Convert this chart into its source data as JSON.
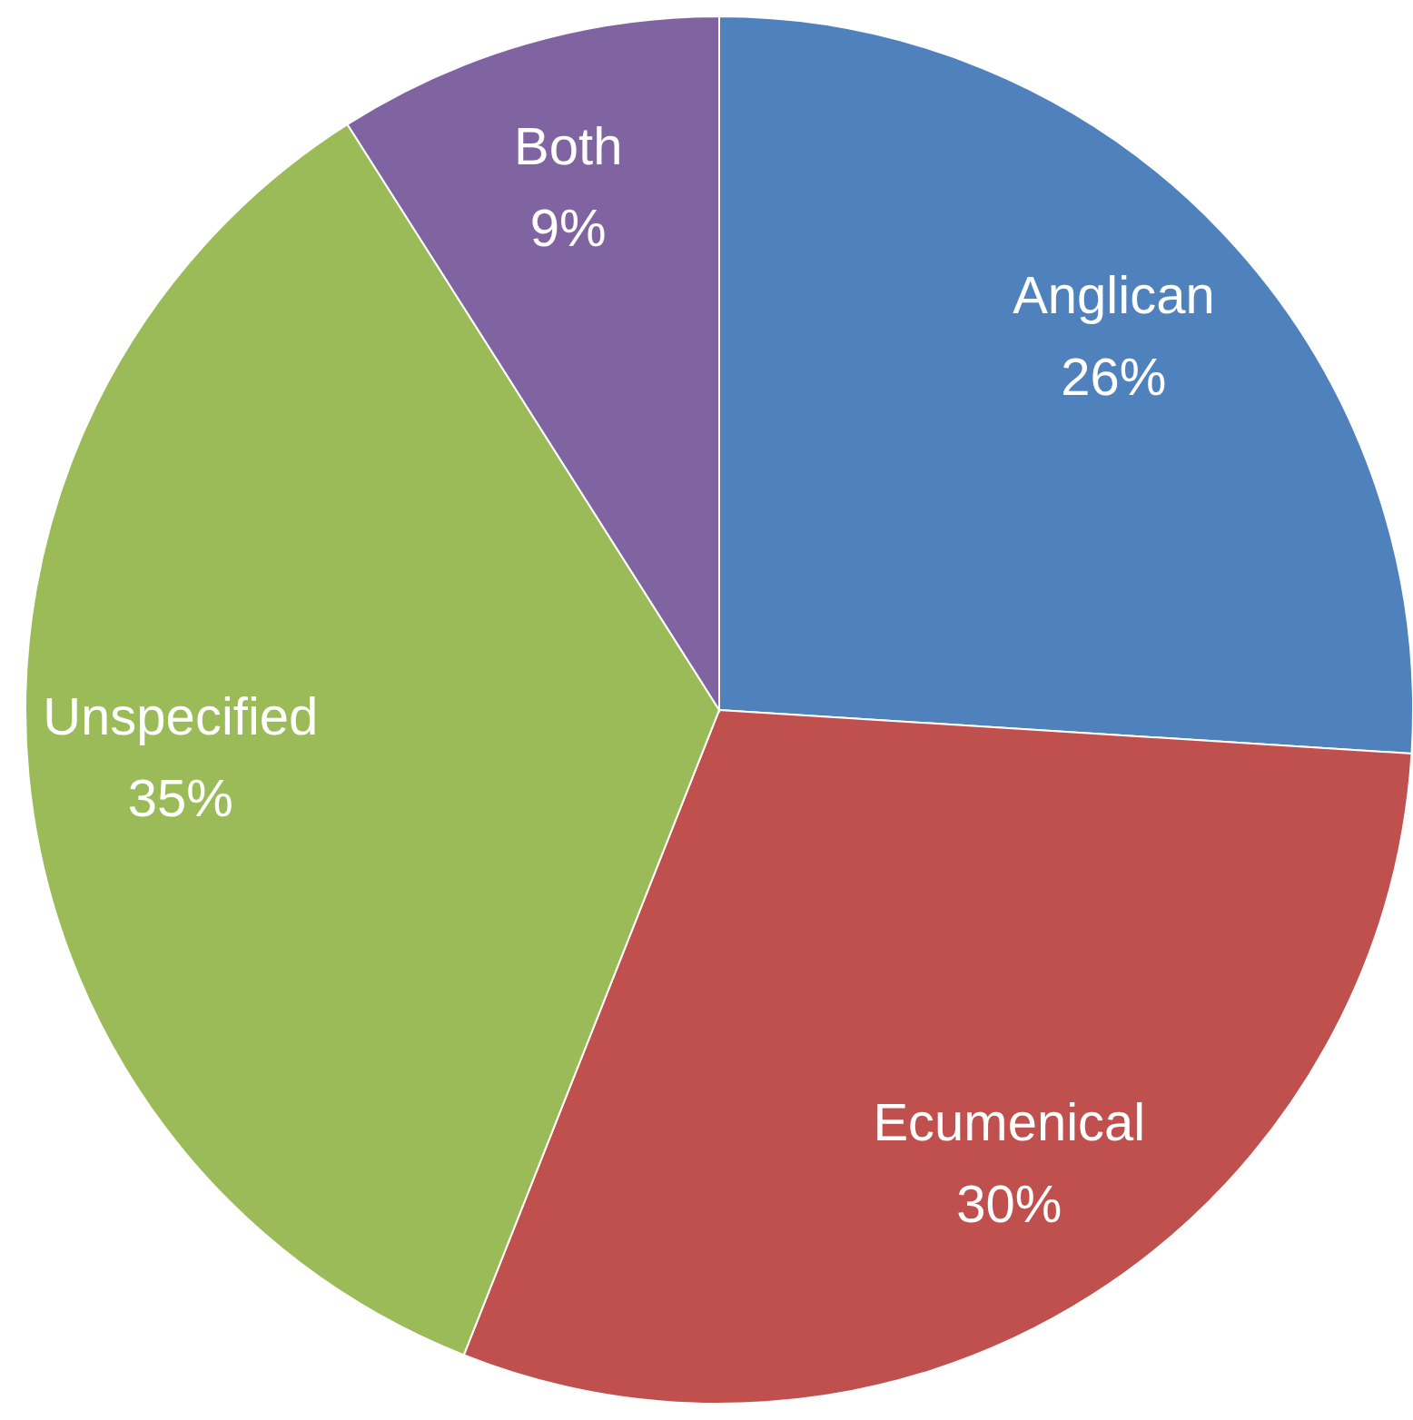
{
  "chart_data": {
    "type": "pie",
    "categories": [
      "Anglican",
      "Ecumenical",
      "Unspecified",
      "Both"
    ],
    "values": [
      26,
      30,
      35,
      9
    ],
    "colors": [
      "#4f81bd",
      "#c0504d",
      "#9bbb59",
      "#8064a2"
    ],
    "value_labels": [
      "26%",
      "30%",
      "35%",
      "9%"
    ]
  }
}
